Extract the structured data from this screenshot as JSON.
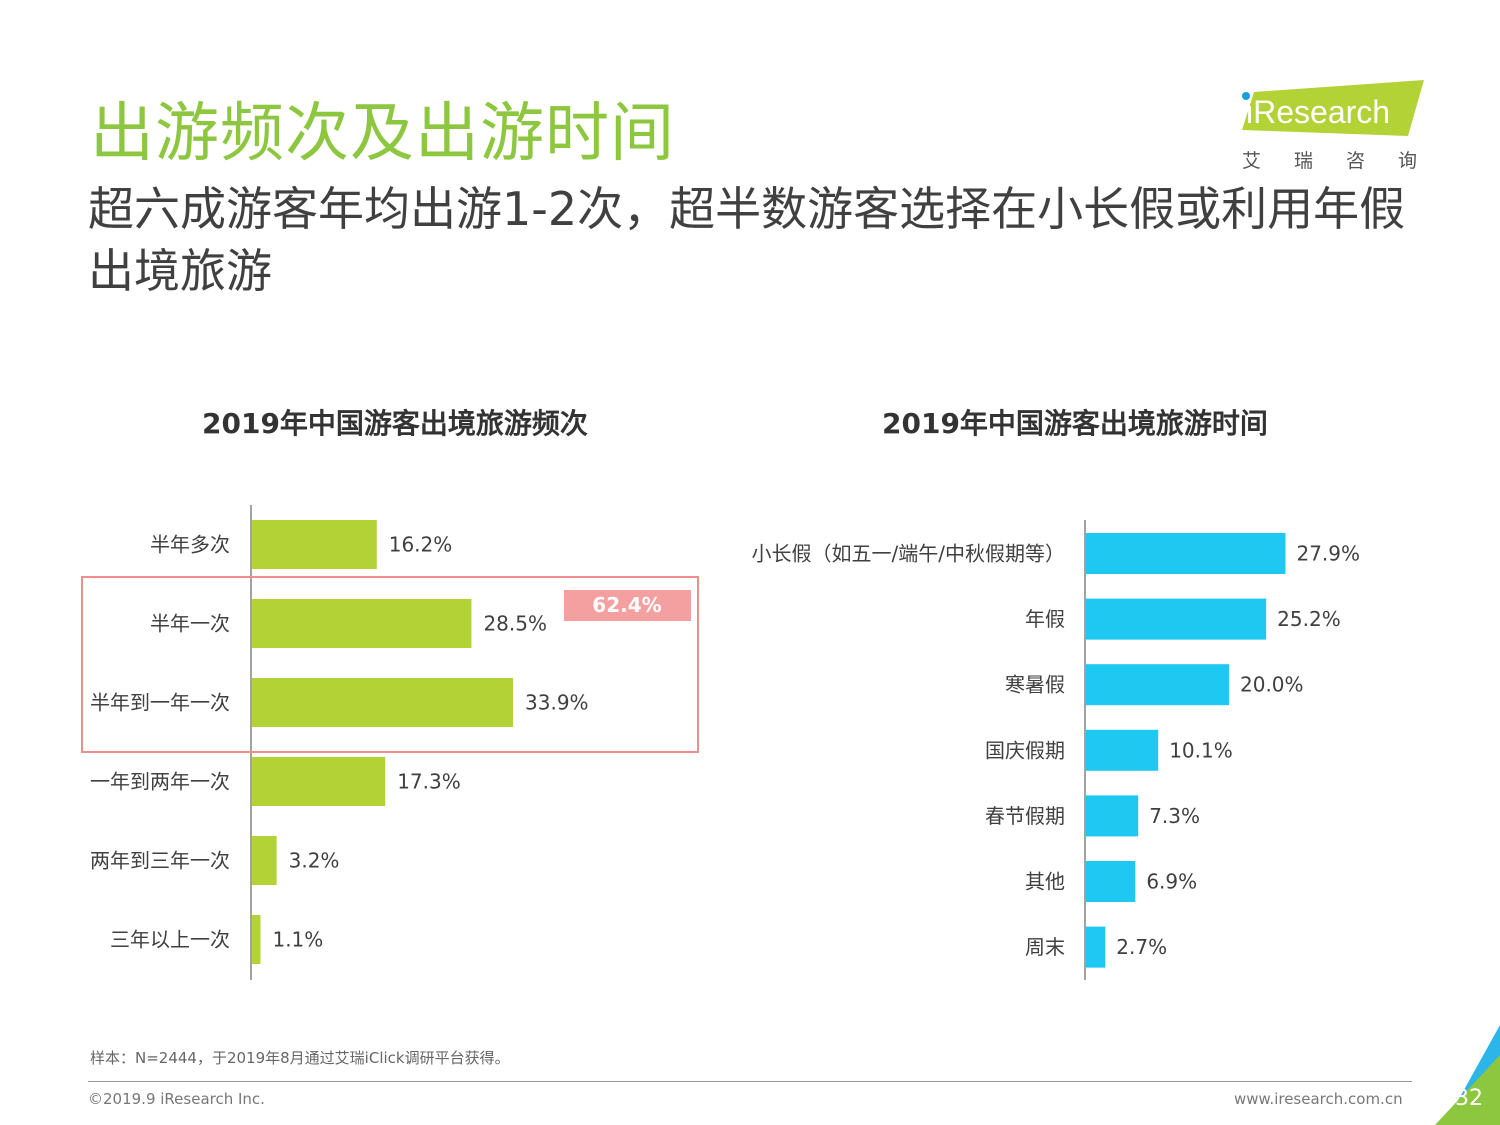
{
  "title": "出游频次及出游时间",
  "subtitle": "超六成游客年均出游1-2次，超半数游客选择在小长假或利用年假出境旅游",
  "logo": {
    "brand": "iResearch",
    "chinese": "艾瑞咨询"
  },
  "chart_data": [
    {
      "type": "bar",
      "orientation": "horizontal",
      "title": "2019年中国游客出境旅游频次",
      "categories": [
        "半年多次",
        "半年一次",
        "半年到一年一次",
        "一年到两年一次",
        "两年到三年一次",
        "三年以上一次"
      ],
      "values": [
        16.2,
        28.5,
        33.9,
        17.3,
        3.2,
        1.1
      ],
      "labels": [
        "16.2%",
        "28.5%",
        "33.9%",
        "17.3%",
        "3.2%",
        "1.1%"
      ],
      "unit": "%",
      "color": "#b2d235",
      "highlight": {
        "categories": [
          "半年一次",
          "半年到一年一次"
        ],
        "label": "62.4%",
        "box_color": "#f08e8e",
        "label_bg": "#f4a0a0"
      }
    },
    {
      "type": "bar",
      "orientation": "horizontal",
      "title": "2019年中国游客出境旅游时间",
      "categories": [
        "小长假（如五一/端午/中秋假期等）",
        "年假",
        "寒暑假",
        "国庆假期",
        "春节假期",
        "其他",
        "周末"
      ],
      "values": [
        27.9,
        25.2,
        20.0,
        10.1,
        7.3,
        6.9,
        2.7
      ],
      "labels": [
        "27.9%",
        "25.2%",
        "20.0%",
        "10.1%",
        "7.3%",
        "6.9%",
        "2.7%"
      ],
      "unit": "%",
      "color": "#1fc8f0"
    }
  ],
  "footnote": "样本：N=2444，于2019年8月通过艾瑞iClick调研平台获得。",
  "copyright": "©2019.9 iResearch Inc.",
  "website": "www.iresearch.com.cn",
  "page_number": "32",
  "colors": {
    "title_green": "#8dc63f",
    "corner_blue": "#2bb5e8",
    "corner_green": "#8dc63f"
  }
}
